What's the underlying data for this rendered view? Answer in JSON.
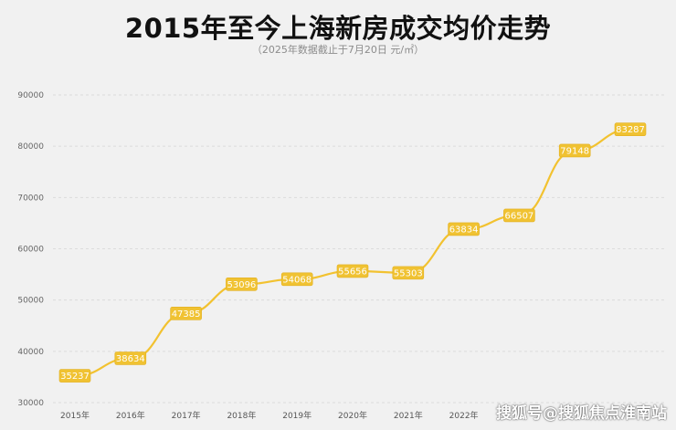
{
  "header": {
    "title": "2015年至今上海新房成交均价走势",
    "subtitle": "（2025年数据截止于7月20日   元/㎡）"
  },
  "watermark": "搜狐号@搜狐焦点淮南站",
  "colors": {
    "line": "#f2c230",
    "label_fill": "#f0c232",
    "grid": "#dcdcdc",
    "background": "#f1f1f1"
  },
  "chart_data": {
    "type": "line",
    "title": "2015年至今上海新房成交均价走势",
    "subtitle": "（2025年数据截止于7月20日   元/㎡）",
    "xlabel": "",
    "ylabel": "",
    "ylim": [
      30000,
      90000
    ],
    "yticks": [
      "30000",
      "40000",
      "50000",
      "60000",
      "70000",
      "80000",
      "90000"
    ],
    "grid": true,
    "categories": [
      "2015年",
      "2016年",
      "2017年",
      "2018年",
      "2019年",
      "2020年",
      "2021年",
      "2022年",
      "",
      "",
      ""
    ],
    "series": [
      {
        "values": [
          35237,
          38634,
          47385,
          53096,
          54068,
          55656,
          55303,
          63834,
          66507,
          79148,
          83287
        ],
        "labels": [
          "35237",
          "38634",
          "47385",
          "53096",
          "54068",
          "55656",
          "55303",
          "63834",
          "66507",
          "79148",
          "83287"
        ]
      }
    ]
  }
}
